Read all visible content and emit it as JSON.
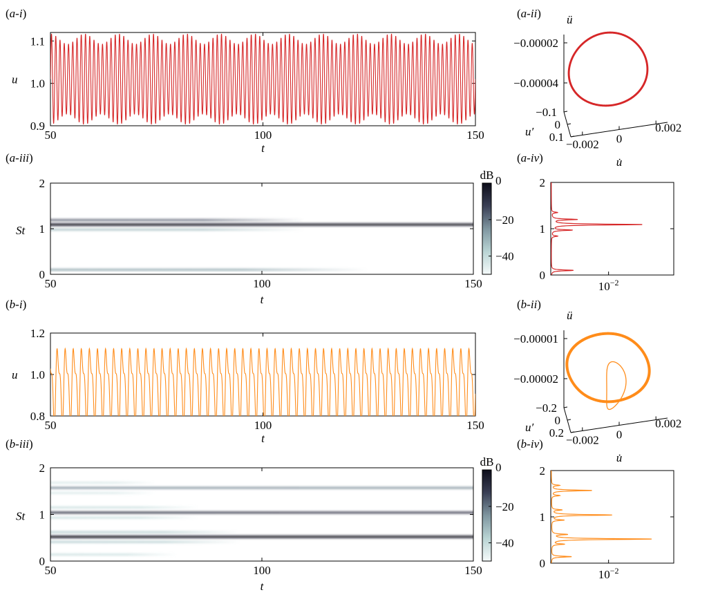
{
  "chart_data": [
    {
      "id": "a-i",
      "type": "line",
      "panel_label": "(a-i)",
      "xlabel": "t",
      "ylabel": "u",
      "xlim": [
        50,
        150
      ],
      "ylim": [
        0.9,
        1.12
      ],
      "xticks": [
        "50",
        "100",
        "150"
      ],
      "yticks": [
        "0.9",
        "1.0",
        "1.1"
      ],
      "series": [
        {
          "color": "#d62728",
          "kind": "oscillation",
          "params": {
            "mean": 1.01,
            "amplitude": 0.095,
            "period": 1.0,
            "mod_amplitude": 0.012,
            "mod_period": 8.0,
            "amp_decay": 0.0,
            "harmonic2": 0.0
          }
        }
      ]
    },
    {
      "id": "a-ii",
      "type": "phase-portrait",
      "panel_label": "(a-ii)",
      "zlabel": "ü",
      "xlabel": "u̇",
      "ylabel": "u′",
      "zticks": [
        "−0.00002",
        "−0.00004"
      ],
      "xticks": [
        "−0.002",
        "0",
        "0.002"
      ],
      "yticks": [
        "−0.1",
        "0",
        "0.1"
      ],
      "series": [
        {
          "color": "#d62728",
          "kind": "single-loop"
        }
      ]
    },
    {
      "id": "a-iii",
      "type": "heatmap",
      "panel_label": "(a-iii)",
      "xlabel": "t",
      "ylabel": "St",
      "xlim": [
        50,
        150
      ],
      "ylim": [
        0,
        2
      ],
      "xticks": [
        "50",
        "100",
        "150"
      ],
      "yticks": [
        "0",
        "1",
        "2"
      ],
      "colorbar_label": "dB",
      "colorbar_ticks": [
        "0",
        "−20",
        "−40"
      ],
      "colorbar_range": [
        -50,
        0
      ],
      "bands": [
        {
          "st": 1.09,
          "level": 0,
          "width": 0.05,
          "fade_end": 150
        },
        {
          "st": 1.19,
          "level": -15,
          "width": 0.035,
          "fade_end": 110
        },
        {
          "st": 0.98,
          "level": -32,
          "width": 0.035,
          "fade_end": 110
        },
        {
          "st": 0.1,
          "level": -28,
          "width": 0.04,
          "fade_end": 125
        }
      ]
    },
    {
      "id": "a-iv",
      "type": "spectrum",
      "panel_label": "(a-iv)",
      "ylim": [
        0,
        2
      ],
      "yticks": [
        "0",
        "1",
        "2"
      ],
      "xticks": [
        "10−2"
      ],
      "series": [
        {
          "color": "#d62728",
          "peaks": [
            {
              "st": 1.09,
              "amp": 0.9
            },
            {
              "st": 1.2,
              "amp": 0.25
            },
            {
              "st": 0.97,
              "amp": 0.2
            },
            {
              "st": 1.35,
              "amp": 0.06
            },
            {
              "st": 0.84,
              "amp": 0.06
            },
            {
              "st": 0.1,
              "amp": 0.22
            }
          ]
        }
      ]
    },
    {
      "id": "b-i",
      "type": "line",
      "panel_label": "(b-i)",
      "xlabel": "t",
      "ylabel": "u",
      "xlim": [
        50,
        150
      ],
      "ylim": [
        0.8,
        1.2
      ],
      "xticks": [
        "50",
        "100",
        "150"
      ],
      "yticks": [
        "0.8",
        "1.0",
        "1.2"
      ],
      "series": [
        {
          "color": "#ff8c1a",
          "kind": "oscillation",
          "params": {
            "mean": 0.96,
            "amplitude": 0.15,
            "period": 1.9,
            "mod_amplitude": 0.0,
            "mod_period": 8.0,
            "amp_decay": 0.0,
            "harmonic2": 0.07
          }
        }
      ]
    },
    {
      "id": "b-ii",
      "type": "phase-portrait",
      "panel_label": "(b-ii)",
      "zlabel": "ü",
      "xlabel": "u̇",
      "ylabel": "u′",
      "zticks": [
        "−0.00001",
        "−0.00002"
      ],
      "xticks": [
        "−0.002",
        "0",
        "0.002"
      ],
      "yticks": [
        "−0.2",
        "0",
        "0.2"
      ],
      "series": [
        {
          "color": "#ff8c1a",
          "kind": "double-loop"
        }
      ]
    },
    {
      "id": "b-iii",
      "type": "heatmap",
      "panel_label": "(b-iii)",
      "xlabel": "t",
      "ylabel": "St",
      "xlim": [
        50,
        150
      ],
      "ylim": [
        0,
        2
      ],
      "xticks": [
        "50",
        "100",
        "150"
      ],
      "yticks": [
        "0",
        "1",
        "2"
      ],
      "colorbar_label": "dB",
      "colorbar_ticks": [
        "0",
        "−20",
        "−40"
      ],
      "colorbar_range": [
        -50,
        0
      ],
      "bands": [
        {
          "st": 0.52,
          "level": 0,
          "width": 0.05,
          "fade_end": 150
        },
        {
          "st": 1.04,
          "level": -8,
          "width": 0.04,
          "fade_end": 150
        },
        {
          "st": 1.57,
          "level": -22,
          "width": 0.035,
          "fade_end": 150
        },
        {
          "st": 0.62,
          "level": -35,
          "width": 0.035,
          "fade_end": 95
        },
        {
          "st": 0.41,
          "level": -35,
          "width": 0.035,
          "fade_end": 95
        },
        {
          "st": 1.15,
          "level": -38,
          "width": 0.03,
          "fade_end": 85
        },
        {
          "st": 0.93,
          "level": -38,
          "width": 0.03,
          "fade_end": 85
        },
        {
          "st": 0.14,
          "level": -40,
          "width": 0.035,
          "fade_end": 80
        },
        {
          "st": 1.68,
          "level": -42,
          "width": 0.03,
          "fade_end": 75
        },
        {
          "st": 1.46,
          "level": -42,
          "width": 0.03,
          "fade_end": 75
        }
      ]
    },
    {
      "id": "b-iv",
      "type": "spectrum",
      "panel_label": "(b-iv)",
      "ylim": [
        0,
        2
      ],
      "yticks": [
        "0",
        "1",
        "2"
      ],
      "xticks": [
        "10−2"
      ],
      "series": [
        {
          "color": "#ff8c1a",
          "peaks": [
            {
              "st": 0.52,
              "amp": 1.0
            },
            {
              "st": 1.04,
              "amp": 0.6
            },
            {
              "st": 1.57,
              "amp": 0.4
            },
            {
              "st": 0.62,
              "amp": 0.15
            },
            {
              "st": 0.41,
              "amp": 0.12
            },
            {
              "st": 1.15,
              "amp": 0.1
            },
            {
              "st": 0.93,
              "amp": 0.12
            },
            {
              "st": 0.14,
              "amp": 0.2
            },
            {
              "st": 1.68,
              "amp": 0.08
            },
            {
              "st": 1.46,
              "amp": 0.08
            }
          ]
        }
      ]
    }
  ]
}
